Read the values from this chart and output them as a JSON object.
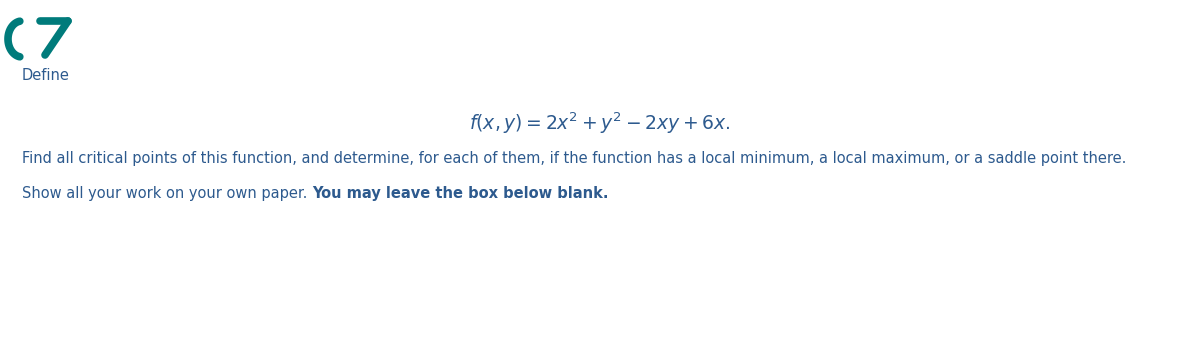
{
  "background_color": "#ffffff",
  "teal_color": "#007b7b",
  "text_color_body": "#2d5a8e",
  "define_text": "Define",
  "define_fontsize": 10.5,
  "formula_fontsize": 13.5,
  "line1_text": "Find all critical points of this function, and determine, for each of them, if the function has a local minimum, a local maximum, or a saddle point there.",
  "line1_fontsize": 10.5,
  "line2_normal": "Show all your work on your own paper. ",
  "line2_bold": "You may leave the box below blank.",
  "line2_fontsize": 10.5,
  "fig_width": 12.0,
  "fig_height": 3.39,
  "fig_dpi": 100
}
